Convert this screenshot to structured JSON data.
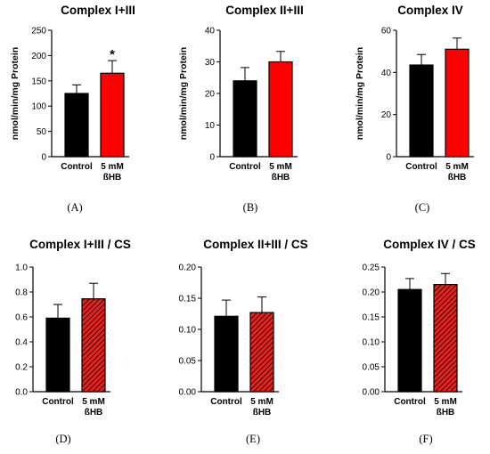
{
  "figure": {
    "background": "#ffffff",
    "colors": {
      "control": "#000000",
      "bhb": "#ff0000",
      "bhb_hatch_stroke": "#000000",
      "bhb_hatch_fill": "#e8231f"
    }
  },
  "chart_data": [
    {
      "panel": "(A)",
      "type": "bar",
      "title": "Complex I+III",
      "ylabel": "nmol/min/mg Protein",
      "ylim": [
        0,
        250
      ],
      "yticks": [
        "0",
        "50",
        "100",
        "150",
        "200",
        "250"
      ],
      "categories": [
        "Control",
        "5 mM ßHB"
      ],
      "values": [
        125,
        165
      ],
      "errors": [
        17,
        25
      ],
      "significance": [
        "",
        "*"
      ],
      "bhb_style": "solid"
    },
    {
      "panel": "(B)",
      "type": "bar",
      "title": "Complex II+III",
      "ylabel": "nmol/min/mg Protein",
      "ylim": [
        0,
        40
      ],
      "yticks": [
        "0",
        "10",
        "20",
        "30",
        "40"
      ],
      "categories": [
        "Control",
        "5 mM ßHB"
      ],
      "values": [
        24,
        30
      ],
      "errors": [
        4.2,
        3.3
      ],
      "significance": [
        "",
        ""
      ],
      "bhb_style": "solid"
    },
    {
      "panel": "(C)",
      "type": "bar",
      "title": "Complex IV",
      "ylabel": "nmol/min/mg Protein",
      "ylim": [
        0,
        60
      ],
      "yticks": [
        "0",
        "20",
        "40",
        "60"
      ],
      "categories": [
        "Control",
        "5 mM ßHB"
      ],
      "values": [
        43.5,
        51
      ],
      "errors": [
        5,
        5.3
      ],
      "significance": [
        "",
        ""
      ],
      "bhb_style": "solid"
    },
    {
      "panel": "(D)",
      "type": "bar",
      "title": "Complex I+III / CS",
      "ylabel": "",
      "ylim": [
        0,
        1.0
      ],
      "yticks": [
        "0.0",
        "0.2",
        "0.4",
        "0.6",
        "0.8",
        "1.0"
      ],
      "categories": [
        "Control",
        "5 mM ßHB"
      ],
      "values": [
        0.59,
        0.745
      ],
      "errors": [
        0.11,
        0.125
      ],
      "significance": [
        "",
        ""
      ],
      "bhb_style": "hatched"
    },
    {
      "panel": "(E)",
      "type": "bar",
      "title": "Complex II+III / CS",
      "ylabel": "",
      "ylim": [
        0,
        0.2
      ],
      "yticks": [
        "0.00",
        "0.05",
        "0.10",
        "0.15",
        "0.20"
      ],
      "categories": [
        "Control",
        "5 mM ßHB"
      ],
      "values": [
        0.121,
        0.127
      ],
      "errors": [
        0.026,
        0.025
      ],
      "significance": [
        "",
        ""
      ],
      "bhb_style": "hatched"
    },
    {
      "panel": "(F)",
      "type": "bar",
      "title": "Complex IV / CS",
      "ylabel": "",
      "ylim": [
        0,
        0.25
      ],
      "yticks": [
        "0.00",
        "0.05",
        "0.10",
        "0.15",
        "0.20",
        "0.25"
      ],
      "categories": [
        "Control",
        "5 mM ßHB"
      ],
      "values": [
        0.205,
        0.215
      ],
      "errors": [
        0.022,
        0.022
      ],
      "significance": [
        "",
        ""
      ],
      "bhb_style": "hatched"
    }
  ]
}
